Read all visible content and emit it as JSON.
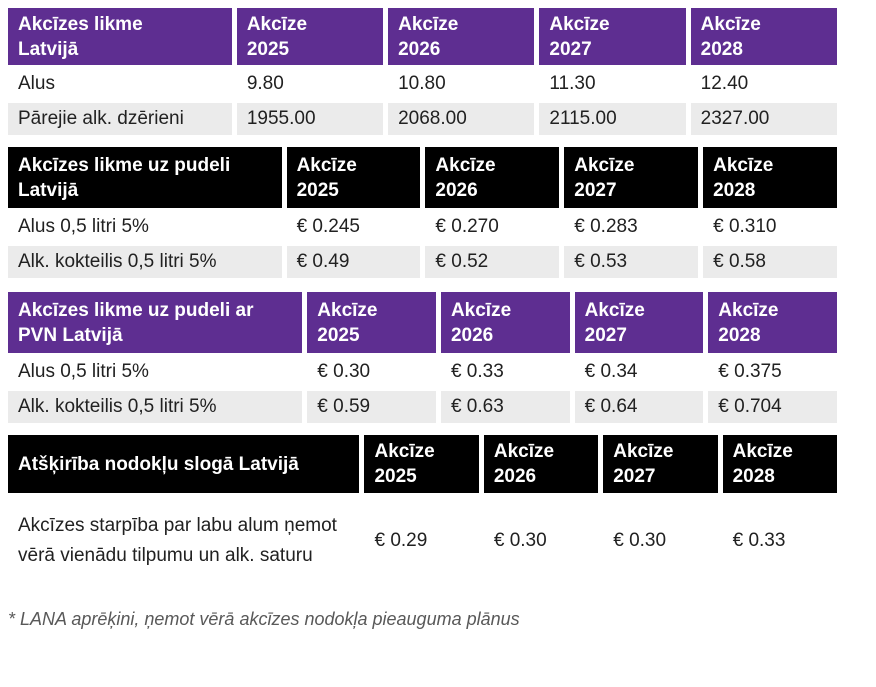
{
  "colors": {
    "header_purple": "#5E2E91",
    "header_black": "#000000",
    "header_text": "#FFFFFF",
    "row_alt_bg": "#EBEBEB",
    "body_text": "#212121",
    "footnote_text": "#595959",
    "page_bg": "#FFFFFF",
    "separator": "#FFFFFF"
  },
  "chart_data": [
    {
      "type": "table",
      "title": "Akcīzes likme\nLatvijā",
      "header_style": "purple",
      "columns": [
        "Akcīze\n2025",
        "Akcīze\n2026",
        "Akcīze\n2027",
        "Akcīze\n2028"
      ],
      "rows": [
        {
          "label": "Alus",
          "values": [
            "9.80",
            "10.80",
            "11.30",
            "12.40"
          ]
        },
        {
          "label": "Pārejie alk. dzērieni",
          "values": [
            "1955.00",
            "2068.00",
            "2115.00",
            "2327.00"
          ]
        }
      ]
    },
    {
      "type": "table",
      "title": "Akcīzes likme uz pudeli\nLatvijā",
      "header_style": "black",
      "columns": [
        "Akcīze\n2025",
        "Akcīze\n2026",
        "Akcīze\n2027",
        "Akcīze\n2028"
      ],
      "rows": [
        {
          "label": "Alus 0,5 litri 5%",
          "values": [
            "€ 0.245",
            "€ 0.270",
            "€ 0.283",
            "€ 0.310"
          ]
        },
        {
          "label": "Alk. kokteilis 0,5 litri 5%",
          "values": [
            "€ 0.49",
            "€ 0.52",
            "€ 0.53",
            "€ 0.58"
          ]
        }
      ]
    },
    {
      "type": "table",
      "title": "Akcīzes likme uz pudeli ar\nPVN Latvijā",
      "header_style": "purple",
      "columns": [
        "Akcīze\n2025",
        "Akcīze\n2026",
        "Akcīze\n2027",
        "Akcīze\n2028"
      ],
      "rows": [
        {
          "label": "Alus 0,5 litri 5%",
          "values": [
            "€ 0.30",
            "€ 0.33",
            "€ 0.34",
            "€ 0.375"
          ]
        },
        {
          "label": "Alk. kokteilis 0,5 litri 5%",
          "values": [
            "€ 0.59",
            "€ 0.63",
            "€ 0.64",
            "€ 0.704"
          ]
        }
      ]
    },
    {
      "type": "table",
      "title": "Atšķirība nodokļu slogā Latvijā",
      "header_style": "black",
      "columns": [
        "Akcīze\n2025",
        "Akcīze\n2026",
        "Akcīze\n2027",
        "Akcīze\n2028"
      ],
      "rows": [
        {
          "label": "Akcīzes starpība par labu alum ņemot vērā vienādu tilpumu un alk. saturu",
          "values": [
            "€ 0.29",
            "€ 0.30",
            "€ 0.30",
            "€ 0.33"
          ]
        }
      ]
    }
  ],
  "footnote": "* LANA aprēķini, ņemot vērā akcīzes nodokļa pieauguma plānus"
}
